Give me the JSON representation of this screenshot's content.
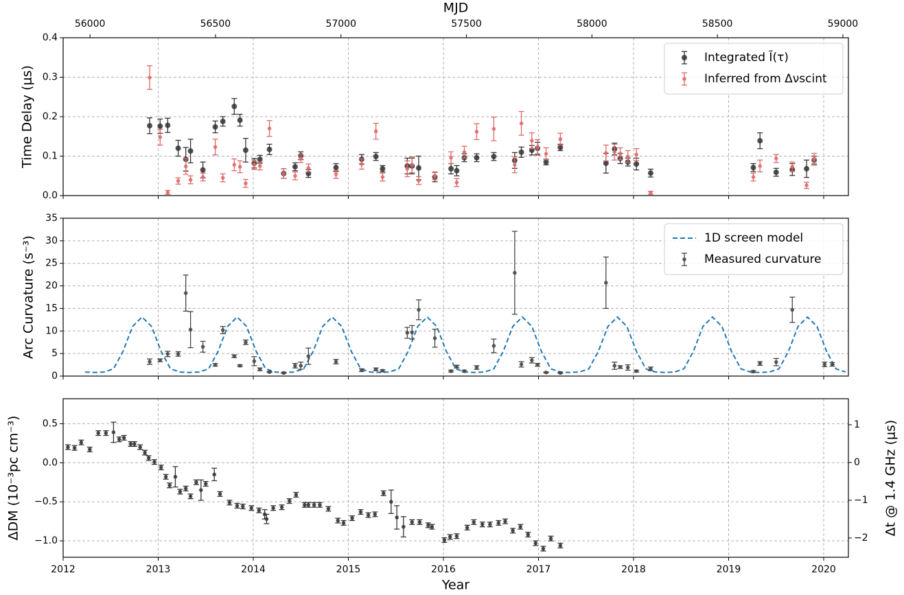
{
  "chart_data": [
    {
      "type": "errorbar",
      "ylabel": "Time Delay (μs)",
      "x2label": "MJD",
      "xlim": [
        2012,
        2020.26
      ],
      "xticks": [
        2012,
        2013,
        2014,
        2015,
        2016,
        2017,
        2018,
        2019,
        2020
      ],
      "show_xtick_labels": false,
      "x2lim": [
        55893,
        59022
      ],
      "x2ticks": [
        56000,
        56500,
        57000,
        57500,
        58000,
        58500,
        59000
      ],
      "ylim": [
        0,
        0.4
      ],
      "yticks": [
        {
          "value": 0,
          "label": "0.0"
        },
        {
          "value": 0.1,
          "label": "0.1"
        },
        {
          "value": 0.2,
          "label": "0.2"
        },
        {
          "value": 0.3,
          "label": "0.3"
        },
        {
          "value": 0.4,
          "label": "0.4"
        }
      ],
      "grid": true,
      "legend": "upper right",
      "series": [
        {
          "name": "Integrated Ĩ(τ)",
          "color": "#333333",
          "x": [
            2012.91,
            2013.02,
            2013.1,
            2013.21,
            2013.29,
            2013.34,
            2013.47,
            2013.6,
            2013.68,
            2013.8,
            2013.86,
            2013.92,
            2014.01,
            2014.07,
            2014.17,
            2014.32,
            2014.44,
            2014.5,
            2014.58,
            2014.87,
            2015.14,
            2015.29,
            2015.36,
            2015.62,
            2015.67,
            2015.74,
            2015.91,
            2016.08,
            2016.14,
            2016.22,
            2016.35,
            2016.53,
            2016.75,
            2016.82,
            2016.93,
            2016.99,
            2017.08,
            2017.23,
            2017.71,
            2017.8,
            2017.86,
            2017.94,
            2018.03,
            2018.18,
            2019.26,
            2019.33,
            2019.5,
            2019.67,
            2019.82,
            2019.9
          ],
          "values": [
            0.177,
            0.176,
            0.178,
            0.12,
            0.092,
            0.113,
            0.065,
            0.174,
            0.188,
            0.226,
            0.191,
            0.115,
            0.082,
            0.092,
            0.117,
            0.056,
            0.073,
            0.101,
            0.056,
            0.071,
            0.092,
            0.099,
            0.068,
            0.075,
            0.075,
            0.07,
            0.047,
            0.068,
            0.063,
            0.096,
            0.096,
            0.099,
            0.089,
            0.11,
            0.115,
            0.12,
            0.085,
            0.122,
            0.082,
            0.118,
            0.094,
            0.085,
            0.08,
            0.057,
            0.071,
            0.139,
            0.059,
            0.066,
            0.068,
            0.09
          ],
          "errors": [
            0.02,
            0.018,
            0.018,
            0.02,
            0.03,
            0.03,
            0.02,
            0.015,
            0.012,
            0.02,
            0.015,
            0.03,
            0.012,
            0.01,
            0.013,
            0.012,
            0.01,
            0.01,
            0.01,
            0.01,
            0.012,
            0.01,
            0.008,
            0.02,
            0.02,
            0.03,
            0.012,
            0.013,
            0.013,
            0.01,
            0.01,
            0.01,
            0.02,
            0.013,
            0.012,
            0.015,
            0.007,
            0.008,
            0.025,
            0.015,
            0.013,
            0.01,
            0.015,
            0.01,
            0.01,
            0.02,
            0.01,
            0.015,
            0.022,
            0.01
          ]
        },
        {
          "name": "Inferred from Δνscint",
          "color": "#e06666",
          "x": [
            2012.91,
            2013.02,
            2013.1,
            2013.21,
            2013.29,
            2013.34,
            2013.47,
            2013.6,
            2013.68,
            2013.8,
            2013.86,
            2013.92,
            2014.01,
            2014.07,
            2014.17,
            2014.32,
            2014.44,
            2014.5,
            2014.58,
            2014.87,
            2015.14,
            2015.29,
            2015.36,
            2015.62,
            2015.67,
            2015.74,
            2015.91,
            2016.08,
            2016.14,
            2016.22,
            2016.35,
            2016.53,
            2016.75,
            2016.82,
            2016.93,
            2016.99,
            2017.08,
            2017.23,
            2017.71,
            2017.8,
            2017.86,
            2017.94,
            2018.03,
            2018.18,
            2019.26,
            2019.33,
            2019.5,
            2019.67,
            2019.82,
            2019.9
          ],
          "values": [
            0.299,
            0.148,
            0.008,
            0.037,
            0.074,
            0.04,
            0.047,
            0.123,
            0.045,
            0.078,
            0.073,
            0.031,
            0.078,
            0.075,
            0.17,
            0.056,
            0.05,
            0.094,
            0.07,
            0.054,
            0.08,
            0.163,
            0.047,
            0.068,
            0.078,
            0.038,
            0.05,
            0.096,
            0.033,
            0.11,
            0.162,
            0.169,
            0.078,
            0.183,
            0.139,
            0.122,
            0.106,
            0.143,
            0.108,
            0.11,
            0.106,
            0.099,
            0.104,
            0.007,
            0.047,
            0.075,
            0.094,
            0.073,
            0.026,
            0.092
          ],
          "errors": [
            0.03,
            0.02,
            0.005,
            0.008,
            0.02,
            0.01,
            0.01,
            0.02,
            0.01,
            0.015,
            0.015,
            0.01,
            0.012,
            0.01,
            0.02,
            0.012,
            0.01,
            0.01,
            0.01,
            0.01,
            0.013,
            0.02,
            0.01,
            0.02,
            0.02,
            0.01,
            0.01,
            0.015,
            0.01,
            0.015,
            0.02,
            0.03,
            0.02,
            0.03,
            0.02,
            0.02,
            0.015,
            0.015,
            0.02,
            0.02,
            0.015,
            0.015,
            0.015,
            0.004,
            0.01,
            0.015,
            0.01,
            0.012,
            0.008,
            0.015
          ]
        }
      ]
    },
    {
      "type": "errorbar",
      "ylabel": "Arc Curvature (s⁻³)",
      "xlim": [
        2012,
        2020.26
      ],
      "xticks": [
        2012,
        2013,
        2014,
        2015,
        2016,
        2017,
        2018,
        2019,
        2020
      ],
      "show_xtick_labels": false,
      "ylim": [
        0,
        35
      ],
      "yticks": [
        0,
        5,
        10,
        15,
        20,
        25,
        30,
        35
      ],
      "grid": true,
      "legend": "upper right",
      "series": [
        {
          "name": "1D screen model",
          "type": "line",
          "color": "#1f77b4",
          "x": [
            2012.23,
            2012.33,
            2012.43,
            2012.53,
            2012.63,
            2012.73,
            2012.83,
            2012.93,
            2013.03,
            2013.13,
            2013.23,
            2013.33,
            2013.43,
            2013.53,
            2013.63,
            2013.73,
            2013.83,
            2013.93,
            2014.03,
            2014.13,
            2014.23,
            2014.33,
            2014.43,
            2014.53,
            2014.63,
            2014.73,
            2014.83,
            2014.93,
            2015.03,
            2015.13,
            2015.23,
            2015.33,
            2015.43,
            2015.53,
            2015.63,
            2015.73,
            2015.83,
            2015.93,
            2016.03,
            2016.13,
            2016.23,
            2016.33,
            2016.43,
            2016.53,
            2016.63,
            2016.73,
            2016.83,
            2016.93,
            2017.03,
            2017.13,
            2017.23,
            2017.33,
            2017.43,
            2017.53,
            2017.63,
            2017.73,
            2017.83,
            2017.93,
            2018.03,
            2018.13,
            2018.23,
            2018.33,
            2018.43,
            2018.53,
            2018.63,
            2018.73,
            2018.83,
            2018.93,
            2019.03,
            2019.13,
            2019.23,
            2019.33,
            2019.43,
            2019.53,
            2019.63,
            2019.73,
            2019.83,
            2019.93,
            2020.03,
            2020.13,
            2020.23
          ],
          "values": [
            0.9,
            0.8,
            0.9,
            1.6,
            5.5,
            11,
            13.1,
            11,
            5.5,
            1.6,
            0.9,
            0.8,
            0.9,
            1.6,
            5.5,
            11,
            13.1,
            11,
            5.5,
            1.6,
            0.9,
            0.8,
            0.9,
            1.6,
            5.5,
            11,
            13.1,
            11,
            5.5,
            1.6,
            0.9,
            0.8,
            0.9,
            1.6,
            5.5,
            11,
            13.1,
            11,
            5.5,
            1.6,
            0.9,
            0.8,
            0.9,
            1.6,
            5.5,
            11,
            13.1,
            11,
            5.5,
            1.6,
            0.9,
            0.8,
            0.9,
            1.6,
            5.5,
            11,
            13.1,
            11,
            5.5,
            1.6,
            0.9,
            0.8,
            0.9,
            1.6,
            5.5,
            11,
            13.1,
            11,
            5.5,
            1.6,
            0.9,
            0.8,
            0.9,
            1.6,
            5.5,
            11,
            13.1,
            11,
            5.5,
            1.6,
            0.9
          ]
        },
        {
          "name": "Measured curvature",
          "color": "#444444",
          "x": [
            2012.91,
            2013.02,
            2013.1,
            2013.21,
            2013.29,
            2013.34,
            2013.47,
            2013.6,
            2013.68,
            2013.8,
            2013.86,
            2013.92,
            2014.01,
            2014.07,
            2014.17,
            2014.32,
            2014.44,
            2014.5,
            2014.58,
            2014.87,
            2015.14,
            2015.29,
            2015.36,
            2015.62,
            2015.67,
            2015.74,
            2015.91,
            2016.08,
            2016.14,
            2016.22,
            2016.35,
            2016.53,
            2016.75,
            2016.82,
            2016.93,
            2016.99,
            2017.08,
            2017.23,
            2017.71,
            2017.8,
            2017.86,
            2017.94,
            2018.03,
            2018.18,
            2019.26,
            2019.33,
            2019.5,
            2019.67,
            2020.01,
            2020.09
          ],
          "values": [
            3.2,
            3.5,
            4.9,
            4.9,
            18.4,
            10.3,
            6.5,
            2.5,
            10.2,
            4.4,
            2.3,
            7.5,
            3.3,
            1.5,
            0.9,
            0.7,
            2.3,
            2.3,
            4.4,
            3.2,
            1.3,
            1.5,
            1.2,
            9.6,
            9.7,
            14.7,
            8.4,
            1.1,
            2.1,
            1.1,
            1.9,
            6.7,
            22.9,
            2.6,
            3.5,
            2.5,
            0.8,
            0.7,
            20.7,
            2.3,
            2.0,
            1.9,
            1.1,
            1.6,
            1.0,
            2.8,
            3.1,
            14.7,
            2.6,
            2.6
          ],
          "errors": [
            0.6,
            0.3,
            0.6,
            0.5,
            4.0,
            4.0,
            1.2,
            0.3,
            0.8,
            0.3,
            0.2,
            0.5,
            1.0,
            0.3,
            0.1,
            0.1,
            0.5,
            0.8,
            1.8,
            0.5,
            0.3,
            0.3,
            0.2,
            1.2,
            1.5,
            2.2,
            2.0,
            0.2,
            0.3,
            0.2,
            0.4,
            1.5,
            9.2,
            0.6,
            0.6,
            0.3,
            0.1,
            0.1,
            5.7,
            0.8,
            0.3,
            0.6,
            0.2,
            0.4,
            0.2,
            0.4,
            0.8,
            2.8,
            0.5,
            0.4
          ]
        }
      ]
    },
    {
      "type": "errorbar",
      "ylabel": "ΔDM (10⁻³pc cm⁻³)",
      "xlabel": "Year",
      "y2label": "Δt @ 1.4 GHz (μs)",
      "xlim": [
        2012,
        2020.26
      ],
      "xticks": [
        2012,
        2013,
        2014,
        2015,
        2016,
        2017,
        2018,
        2019,
        2020
      ],
      "show_xtick_labels": true,
      "ylim": [
        -1.21,
        0.82
      ],
      "yticks": [
        {
          "value": -1,
          "label": "−1.0"
        },
        {
          "value": -0.5,
          "label": "−0.5"
        },
        {
          "value": 0,
          "label": "0.0"
        },
        {
          "value": 0.5,
          "label": "0.5"
        }
      ],
      "y2lim": [
        -2.51,
        1.69
      ],
      "y2ticks": [
        {
          "value": -2,
          "label": "−2"
        },
        {
          "value": -1,
          "label": "−1"
        },
        0,
        1
      ],
      "grid": true,
      "series": [
        {
          "color": "#333333",
          "x": [
            2012.05,
            2012.12,
            2012.19,
            2012.28,
            2012.37,
            2012.45,
            2012.53,
            2012.59,
            2012.64,
            2012.71,
            2012.75,
            2012.81,
            2012.86,
            2012.9,
            2012.96,
            2013.03,
            2013.08,
            2013.12,
            2013.18,
            2013.23,
            2013.29,
            2013.34,
            2013.4,
            2013.45,
            2013.5,
            2013.59,
            2013.65,
            2013.75,
            2013.83,
            2013.89,
            2013.98,
            2014.06,
            2014.12,
            2014.14,
            2014.21,
            2014.3,
            2014.38,
            2014.45,
            2014.54,
            2014.58,
            2014.64,
            2014.7,
            2014.79,
            2014.89,
            2014.95,
            2015.04,
            2015.13,
            2015.21,
            2015.28,
            2015.37,
            2015.45,
            2015.51,
            2015.58,
            2015.67,
            2015.75,
            2015.84,
            2015.88,
            2016.01,
            2016.07,
            2016.14,
            2016.25,
            2016.32,
            2016.41,
            2016.49,
            2016.58,
            2016.65,
            2016.73,
            2016.81,
            2016.89,
            2016.97,
            2017.05,
            2017.13,
            2017.23
          ],
          "values": [
            0.2,
            0.19,
            0.26,
            0.17,
            0.38,
            0.38,
            0.39,
            0.3,
            0.32,
            0.24,
            0.24,
            0.2,
            0.13,
            0.06,
            0.01,
            -0.06,
            -0.18,
            -0.29,
            -0.18,
            -0.37,
            -0.33,
            -0.43,
            -0.25,
            -0.35,
            -0.27,
            -0.15,
            -0.4,
            -0.51,
            -0.55,
            -0.56,
            -0.58,
            -0.61,
            -0.66,
            -0.72,
            -0.58,
            -0.57,
            -0.49,
            -0.41,
            -0.54,
            -0.54,
            -0.54,
            -0.54,
            -0.59,
            -0.74,
            -0.77,
            -0.71,
            -0.63,
            -0.67,
            -0.66,
            -0.39,
            -0.5,
            -0.7,
            -0.82,
            -0.76,
            -0.76,
            -0.8,
            -0.82,
            -0.99,
            -0.95,
            -0.94,
            -0.83,
            -0.76,
            -0.79,
            -0.79,
            -0.77,
            -0.75,
            -0.87,
            -0.82,
            -0.92,
            -1.03,
            -1.1,
            -0.97,
            -1.06
          ],
          "errors": [
            0.03,
            0.03,
            0.03,
            0.03,
            0.03,
            0.03,
            0.13,
            0.03,
            0.03,
            0.03,
            0.03,
            0.03,
            0.03,
            0.03,
            0.03,
            0.03,
            0.03,
            0.03,
            0.13,
            0.03,
            0.03,
            0.03,
            0.03,
            0.13,
            0.03,
            0.08,
            0.03,
            0.03,
            0.03,
            0.03,
            0.03,
            0.03,
            0.06,
            0.06,
            0.03,
            0.03,
            0.03,
            0.03,
            0.03,
            0.03,
            0.03,
            0.03,
            0.03,
            0.03,
            0.03,
            0.03,
            0.03,
            0.03,
            0.03,
            0.03,
            0.15,
            0.15,
            0.13,
            0.03,
            0.03,
            0.03,
            0.03,
            0.03,
            0.03,
            0.03,
            0.03,
            0.03,
            0.03,
            0.03,
            0.03,
            0.03,
            0.03,
            0.03,
            0.03,
            0.03,
            0.03,
            0.03,
            0.03
          ]
        }
      ]
    }
  ]
}
